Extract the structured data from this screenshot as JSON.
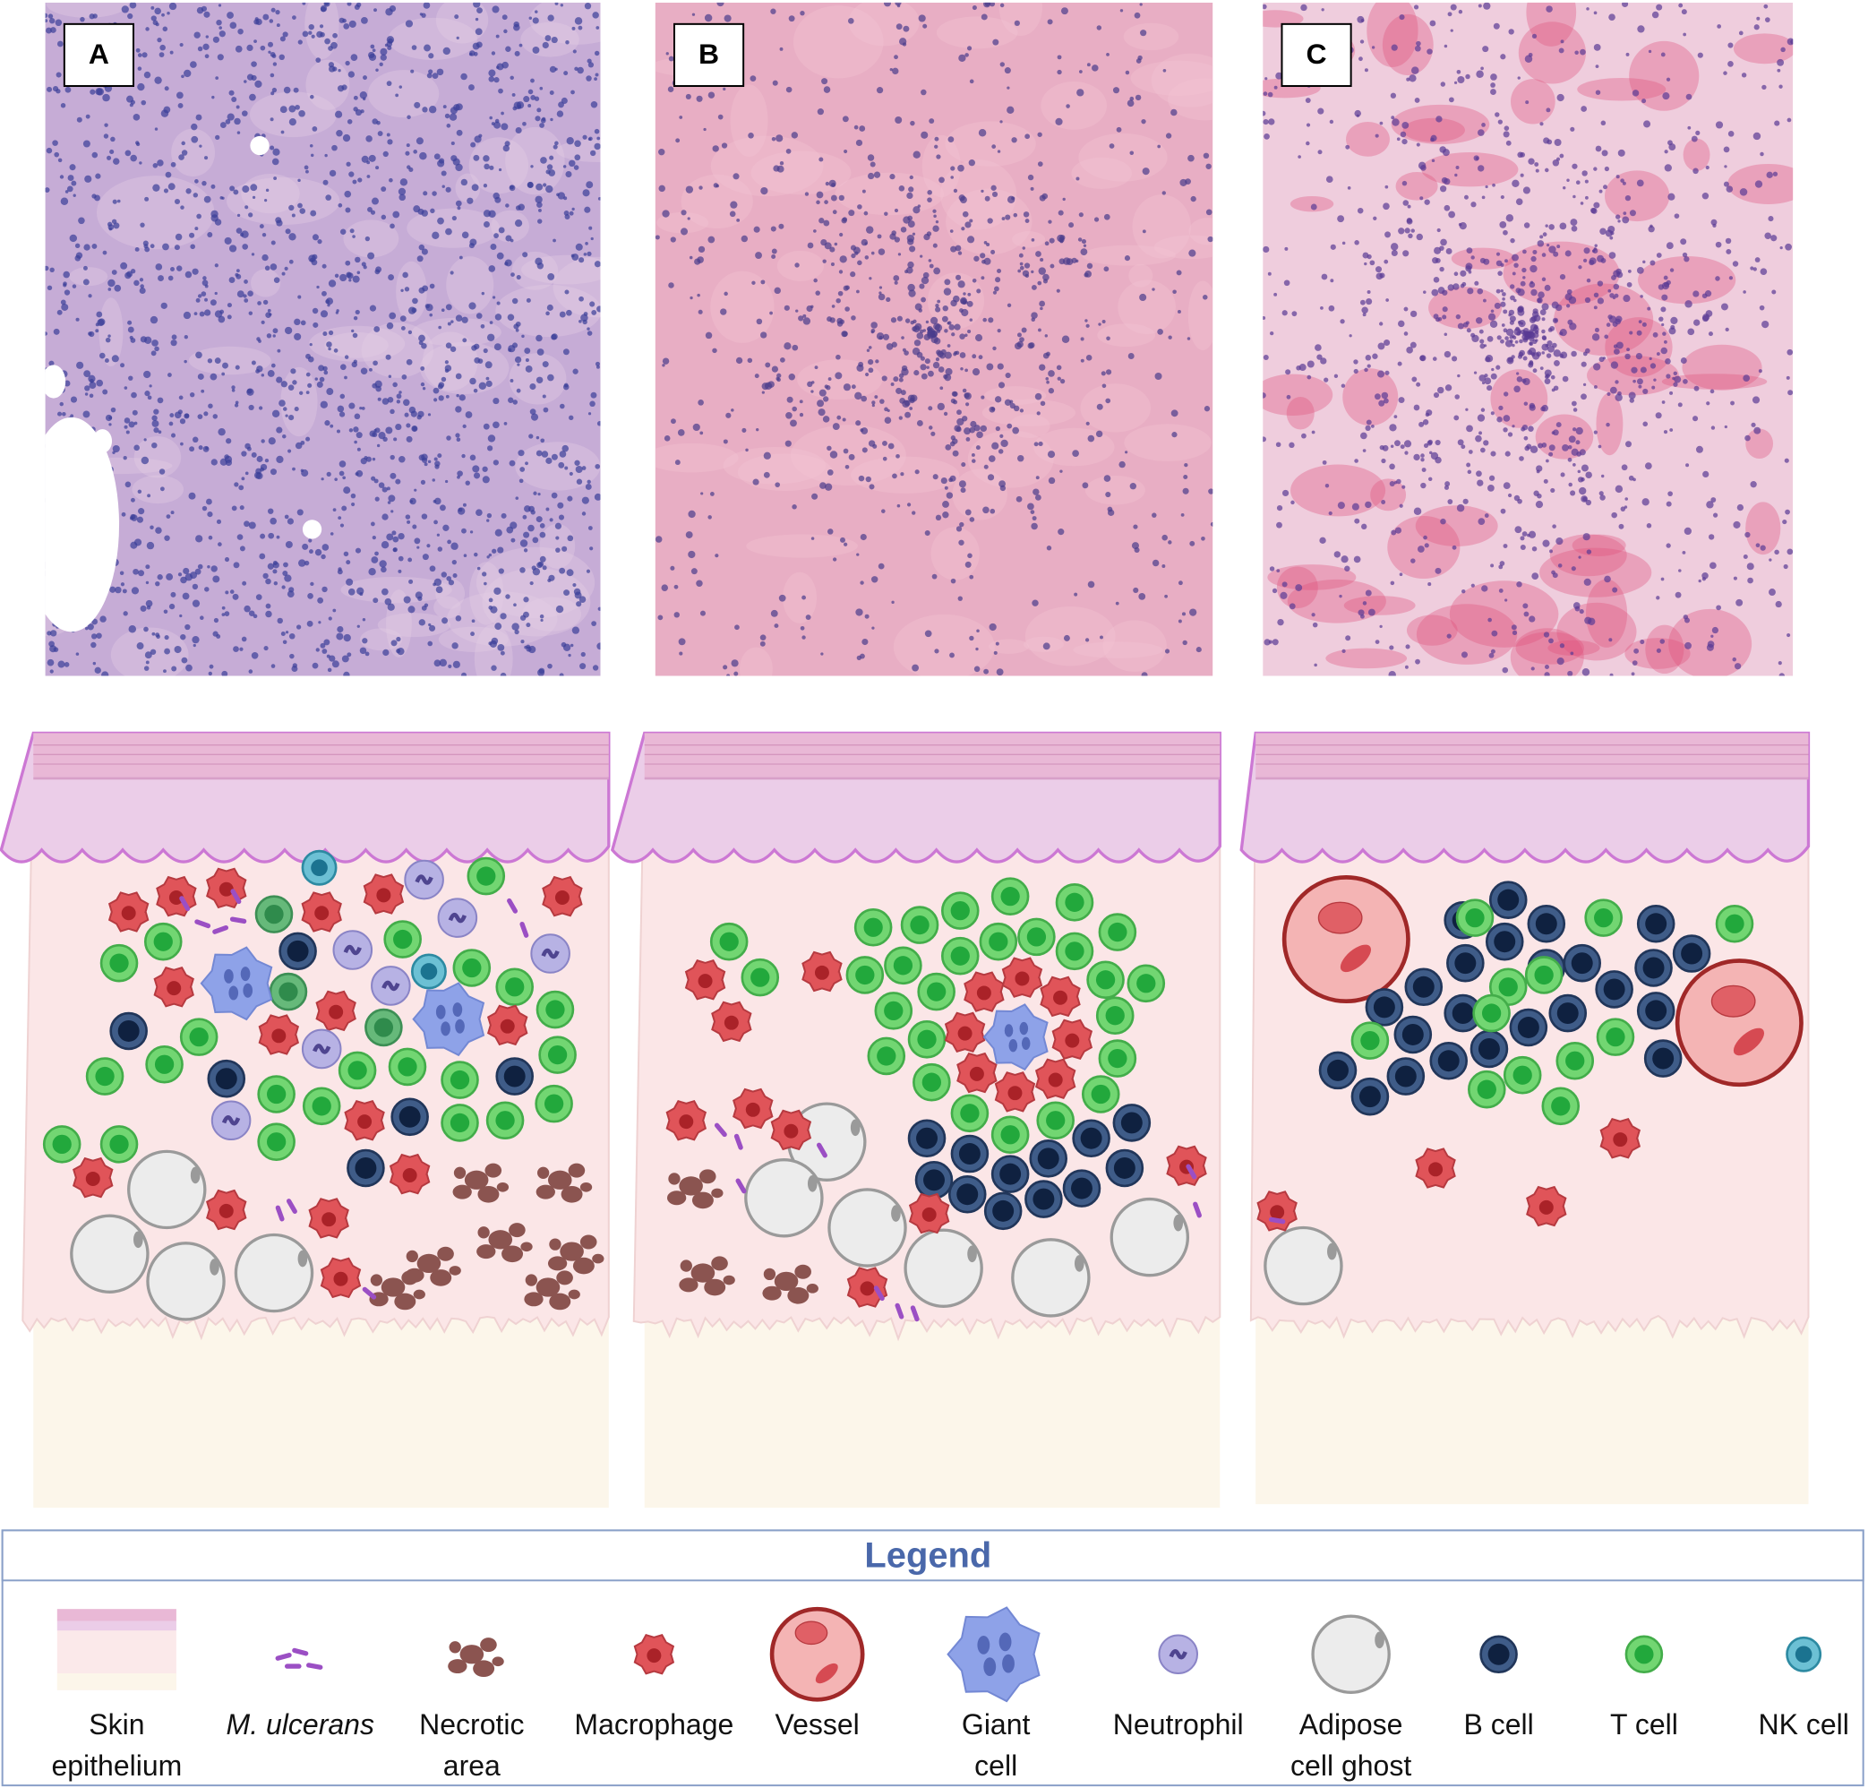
{
  "panels": [
    {
      "label": "A"
    },
    {
      "label": "B"
    },
    {
      "label": "C"
    }
  ],
  "legend": {
    "title": "Legend",
    "items": [
      "Skin epithelium",
      "M. ulcerans",
      "Necrotic area",
      "Macrophage",
      "Vessel",
      "Giant cell",
      "Neutrophil",
      "Adipose cell ghost",
      "B cell",
      "T cell",
      "NK cell"
    ]
  }
}
